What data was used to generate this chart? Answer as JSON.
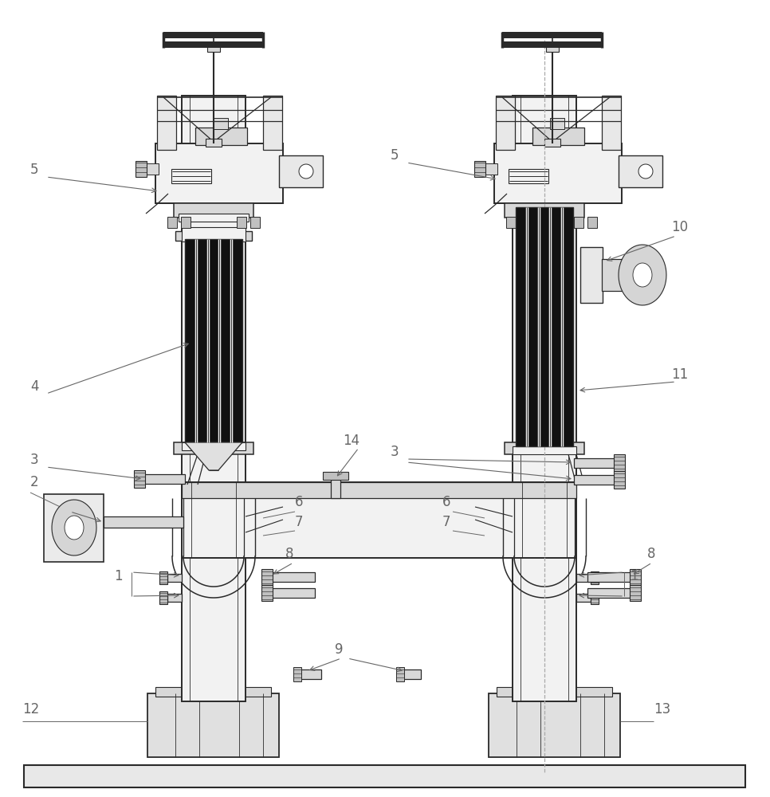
{
  "bg": "#ffffff",
  "lc": "#2a2a2a",
  "df": "#111111",
  "lf": "#f2f2f2",
  "mf": "#d8d8d8",
  "gf": "#c0c0c0",
  "lbl": "#666666",
  "fs": 12,
  "fw": 9.66,
  "fh": 10.0,
  "dpi": 100
}
